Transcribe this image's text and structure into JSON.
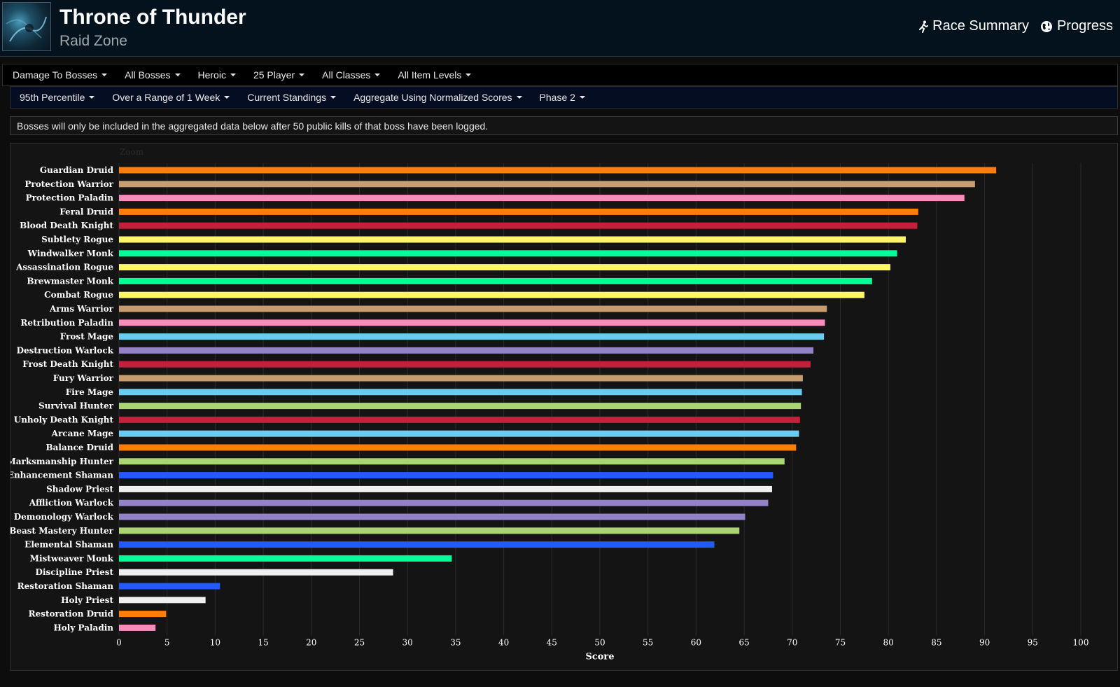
{
  "header": {
    "title": "Throne of Thunder",
    "subtitle": "Raid Zone",
    "links": [
      {
        "label": "Race Summary",
        "icon": "runner-icon"
      },
      {
        "label": "Progress",
        "icon": "globe-icon"
      }
    ]
  },
  "filters_row1": [
    "Damage To Bosses",
    "All Bosses",
    "Heroic",
    "25 Player",
    "All Classes",
    "All Item Levels"
  ],
  "filters_row2": [
    "95th Percentile",
    "Over a Range of 1 Week",
    "Current Standings",
    "Aggregate Using Normalized Scores",
    "Phase 2"
  ],
  "notice": "Bosses will only be included in the aggregated data below after 50 public kills of that boss have been logged.",
  "chart_data": {
    "type": "bar",
    "orientation": "horizontal",
    "zoom_label": "Zoom",
    "xlabel": "Score",
    "xlim": [
      0,
      100
    ],
    "xticks": [
      0,
      5,
      10,
      15,
      20,
      25,
      30,
      35,
      40,
      45,
      50,
      55,
      60,
      65,
      70,
      75,
      80,
      85,
      90,
      95,
      100
    ],
    "grid": true,
    "bars": [
      {
        "label": "Guardian Druid",
        "value": 91.2,
        "color": "#ff7d0a"
      },
      {
        "label": "Protection Warrior",
        "value": 89.0,
        "color": "#c79c6e"
      },
      {
        "label": "Protection Paladin",
        "value": 87.9,
        "color": "#f58cba"
      },
      {
        "label": "Feral Druid",
        "value": 83.1,
        "color": "#ff7d0a"
      },
      {
        "label": "Blood Death Knight",
        "value": 83.0,
        "color": "#c41f3b"
      },
      {
        "label": "Subtlety Rogue",
        "value": 81.8,
        "color": "#fff569"
      },
      {
        "label": "Windwalker Monk",
        "value": 80.9,
        "color": "#00ff96"
      },
      {
        "label": "Assassination Rogue",
        "value": 80.2,
        "color": "#fff569"
      },
      {
        "label": "Brewmaster Monk",
        "value": 78.3,
        "color": "#00ff96"
      },
      {
        "label": "Combat Rogue",
        "value": 77.5,
        "color": "#fff569"
      },
      {
        "label": "Arms Warrior",
        "value": 73.6,
        "color": "#c79c6e"
      },
      {
        "label": "Retribution Paladin",
        "value": 73.4,
        "color": "#f58cba"
      },
      {
        "label": "Frost Mage",
        "value": 73.3,
        "color": "#69ccf0"
      },
      {
        "label": "Destruction Warlock",
        "value": 72.2,
        "color": "#9482c9"
      },
      {
        "label": "Frost Death Knight",
        "value": 71.9,
        "color": "#c41f3b"
      },
      {
        "label": "Fury Warrior",
        "value": 71.1,
        "color": "#c79c6e"
      },
      {
        "label": "Fire Mage",
        "value": 71.0,
        "color": "#69ccf0"
      },
      {
        "label": "Survival Hunter",
        "value": 70.9,
        "color": "#abd473"
      },
      {
        "label": "Unholy Death Knight",
        "value": 70.8,
        "color": "#c41f3b"
      },
      {
        "label": "Arcane Mage",
        "value": 70.7,
        "color": "#69ccf0"
      },
      {
        "label": "Balance Druid",
        "value": 70.4,
        "color": "#ff7d0a"
      },
      {
        "label": "Marksmanship Hunter",
        "value": 69.2,
        "color": "#abd473"
      },
      {
        "label": "Enhancement Shaman",
        "value": 68.0,
        "color": "#2459ff"
      },
      {
        "label": "Shadow Priest",
        "value": 67.9,
        "color": "#f0f0f0"
      },
      {
        "label": "Affliction Warlock",
        "value": 67.5,
        "color": "#9482c9"
      },
      {
        "label": "Demonology Warlock",
        "value": 65.1,
        "color": "#9482c9"
      },
      {
        "label": "Beast Mastery Hunter",
        "value": 64.5,
        "color": "#abd473"
      },
      {
        "label": "Elemental Shaman",
        "value": 61.9,
        "color": "#2459ff"
      },
      {
        "label": "Mistweaver Monk",
        "value": 34.6,
        "color": "#00ff96"
      },
      {
        "label": "Discipline Priest",
        "value": 28.5,
        "color": "#f0f0f0"
      },
      {
        "label": "Restoration Shaman",
        "value": 10.5,
        "color": "#2459ff"
      },
      {
        "label": "Holy Priest",
        "value": 9.0,
        "color": "#f0f0f0"
      },
      {
        "label": "Restoration Druid",
        "value": 4.9,
        "color": "#ff7d0a"
      },
      {
        "label": "Holy Paladin",
        "value": 3.8,
        "color": "#f58cba"
      }
    ]
  }
}
